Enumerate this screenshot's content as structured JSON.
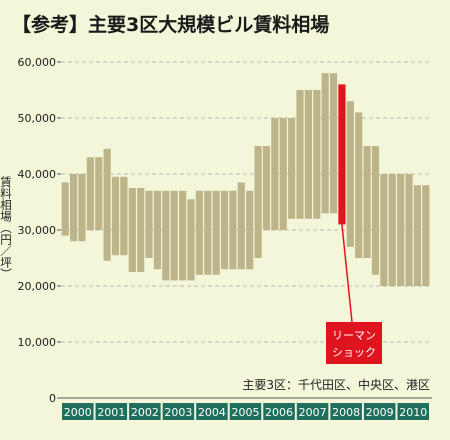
{
  "title": "【参考】主要3区大規模ビル賃料相場",
  "ylabel": "賃料相場（円／坪）",
  "note": "主要3区：千代田区、中央区、港区",
  "callout": {
    "line1": "リーマン",
    "line2": "ショック"
  },
  "colors": {
    "bar": "#bdb48a",
    "highlight": "#e0141f",
    "year_box": "#1f6f5f",
    "background": "#f3f6d9",
    "grid": "#b9b9b9"
  },
  "chart_data": {
    "type": "bar",
    "title": "【参考】主要3区大規模ビル賃料相場",
    "ylabel": "賃料相場（円／坪）",
    "xlabel": "",
    "ylim": [
      0,
      60000
    ],
    "yticks": [
      0,
      10000,
      20000,
      30000,
      40000,
      50000,
      60000
    ],
    "ytick_labels": [
      "0",
      "10,000",
      "20,000",
      "30,000",
      "40,000",
      "50,000",
      "60,000"
    ],
    "grid": true,
    "years": [
      "2000",
      "2001",
      "2002",
      "2003",
      "2004",
      "2005",
      "2006",
      "2007",
      "2008",
      "2009",
      "2010"
    ],
    "bars_per_year": 4,
    "series": [
      {
        "values_low": [
          29000,
          28000,
          28000,
          30000,
          30000,
          24500,
          25500,
          25500,
          22500,
          22500,
          25000,
          23000,
          21000,
          21000,
          21000,
          21000,
          22000,
          22000,
          22000,
          23000,
          23000,
          23000,
          23000,
          25000,
          30000,
          30000,
          30000,
          32000,
          32000,
          32000,
          32000,
          33000,
          33000,
          31000,
          27000,
          25000,
          25000,
          22000,
          20000,
          20000,
          20000,
          20000,
          20000,
          20000
        ],
        "values_high": [
          38500,
          40000,
          40000,
          43000,
          43000,
          44500,
          39500,
          39500,
          37500,
          37500,
          37000,
          37000,
          37000,
          37000,
          37000,
          35500,
          37000,
          37000,
          37000,
          37000,
          37000,
          38500,
          37000,
          45000,
          45000,
          50000,
          50000,
          50000,
          55000,
          55000,
          55000,
          58000,
          58000,
          56000,
          53000,
          51000,
          45000,
          45000,
          40000,
          40000,
          40000,
          40000,
          38000,
          38000
        ]
      }
    ],
    "highlight_index": 33
  }
}
